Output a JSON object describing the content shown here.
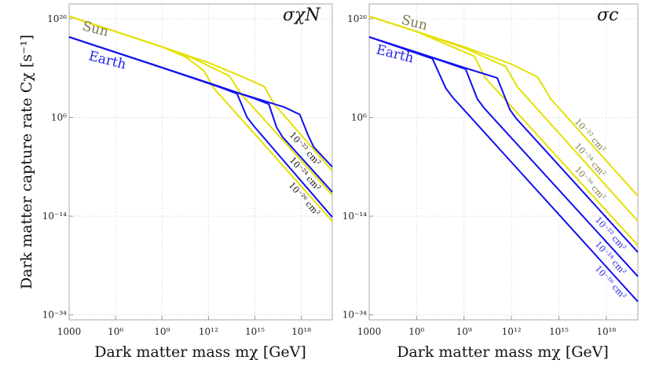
{
  "chart_data": [
    {
      "type": "line",
      "title": "σχN",
      "xlabel": "Dark matter mass mχ [GeV]",
      "ylabel": "Dark matter capture rate Cχ [s⁻¹]",
      "xscale": "log",
      "yscale": "log",
      "xlim": [
        1000.0,
        1e+20
      ],
      "ylim": [
        1e-35,
        1e+29
      ],
      "xticks": [
        "1000",
        "10⁶",
        "10⁹",
        "10¹²",
        "10¹⁵",
        "10¹⁸"
      ],
      "xtick_values": [
        1000.0,
        1000000.0,
        1000000000.0,
        1000000000000.0,
        1000000000000000.0,
        1e+18
      ],
      "yticks": [
        "10²⁶",
        "10⁶",
        "10⁻¹⁴",
        "10⁻³⁴"
      ],
      "ytick_values": [
        1e+26,
        1000000.0,
        1e-14,
        1e-34
      ],
      "grid": true,
      "annotations": {
        "sun": "Sun",
        "earth": "Earth",
        "s22": "10⁻²² cm²",
        "s24": "10⁻²⁴ cm²",
        "s26": "10⁻²⁶ cm²"
      },
      "series": [
        {
          "body": "Sun",
          "cross_section": "10⁻²² cm²",
          "color": "#e5e000",
          "points": [
            [
              1000.0,
              3.16e+26
            ],
            [
              1000000.0,
              2.51e+23
            ],
            [
              1000000000.0,
              2e+20
            ],
            [
              1000000000000.0,
              1.26e+17
            ],
            [
              100000000000000.0,
              316000000000000.0
            ],
            [
              3980000000000000.0,
              2000000000000.0
            ],
            [
              1.78e+16,
              501000000.0
            ],
            [
              1e+20,
              1.58e-05
            ]
          ]
        },
        {
          "body": "Sun",
          "cross_section": "10⁻²⁴ cm²",
          "color": "#e5e000",
          "points": [
            [
              1000.0,
              3.16e+26
            ],
            [
              1000000.0,
              2.51e+23
            ],
            [
              1000000000.0,
              2e+20
            ],
            [
              100000000000.0,
              1e+18
            ],
            [
              22400000000000.0,
              251000000000000.0
            ],
            [
              126000000000000.0,
              63100000000.0
            ],
            [
              1e+20,
              2e-10
            ]
          ]
        },
        {
          "body": "Sun",
          "cross_section": "10⁻²⁶ cm²",
          "color": "#e5e000",
          "points": [
            [
              1000.0,
              3.16e+26
            ],
            [
              1000000.0,
              2.51e+23
            ],
            [
              1000000000.0,
              2e+20
            ],
            [
              31600000000.0,
              2e+18
            ],
            [
              501000000000.0,
              3160000000000000.0
            ],
            [
              2240000000000.0,
              794000000000.0
            ],
            [
              1e+20,
              1e-15
            ]
          ]
        },
        {
          "body": "Earth",
          "cross_section": "10⁻²² cm²",
          "color": "#1010f0",
          "points": [
            [
              1000.0,
              2e+22
            ],
            [
              1000000000.0,
              1.26e+16
            ],
            [
              1000000000000.0,
              10000000000000.0
            ],
            [
              100000000000000.0,
              79400000000.0
            ],
            [
              7.94e+16,
              126000000.0
            ],
            [
              7.94e+17,
              3980000.0
            ],
            [
              2.82e+18,
              200.0
            ],
            [
              6.31e+18,
              1
            ],
            [
              1e+20,
              0.0001
            ]
          ]
        },
        {
          "body": "Earth",
          "cross_section": "10⁻²⁴ cm²",
          "color": "#1010f0",
          "points": [
            [
              1000.0,
              2e+22
            ],
            [
              1000000000.0,
              1.26e+16
            ],
            [
              1000000000000.0,
              10000000000000.0
            ],
            [
              1000000000000000.0,
              6310000000.0
            ],
            [
              7940000000000000.0,
              501000000.0
            ],
            [
              2.51e+16,
              10000.0
            ],
            [
              6.31e+16,
              100.0
            ],
            [
              1e+20,
              7.94e-10
            ]
          ]
        },
        {
          "body": "Earth",
          "cross_section": "10⁻²⁶ cm²",
          "color": "#1010f0",
          "points": [
            [
              1000.0,
              2e+22
            ],
            [
              1000000000.0,
              1.26e+16
            ],
            [
              7080000000000.0,
              1000000000000.0
            ],
            [
              70800000000000.0,
              63100000000.0
            ],
            [
              316000000000000.0,
              1000000.0
            ],
            [
              1000000000000000.0,
              10000.0
            ],
            [
              1e+20,
              6.31e-15
            ]
          ]
        }
      ]
    },
    {
      "type": "line",
      "title": "σc",
      "xlabel": "Dark matter mass mχ [GeV]",
      "xscale": "log",
      "yscale": "log",
      "xlim": [
        1000.0,
        1e+20
      ],
      "ylim": [
        1e-35,
        1e+29
      ],
      "xticks": [
        "1000",
        "10⁶",
        "10⁹",
        "10¹²",
        "10¹⁵",
        "10¹⁸"
      ],
      "xtick_values": [
        1000.0,
        1000000.0,
        1000000000.0,
        1000000000000.0,
        1000000000000000.0,
        1e+18
      ],
      "yticks": [
        "10²⁶",
        "10⁶",
        "10⁻¹⁴",
        "10⁻³⁴"
      ],
      "ytick_values": [
        1e+26,
        1000000.0,
        1e-14,
        1e-34
      ],
      "grid": true,
      "annotations": {
        "sun": "Sun",
        "earth": "Earth",
        "sun22": "10⁻²² cm²",
        "sun24": "10⁻²⁴ cm²",
        "sun26": "10⁻²⁶ cm²",
        "earth22": "10⁻²² cm²",
        "earth24": "10⁻²⁴ cm²",
        "earth26": "10⁻²⁶ cm²"
      },
      "series": [
        {
          "body": "Sun",
          "cross_section": "10⁻²² cm²",
          "color": "#e5e000",
          "points": [
            [
              1000.0,
              3.16e+26
            ],
            [
              1000000.0,
              2.51e+23
            ],
            [
              1000000000.0,
              2e+20
            ],
            [
              1000000000000.0,
              6.31e+16
            ],
            [
              44700000000000.0,
              158000000000000.0
            ],
            [
              316000000000000.0,
              5010000000.0
            ],
            [
              1e+20,
              1.26e-10
            ]
          ]
        },
        {
          "body": "Sun",
          "cross_section": "10⁻²⁴ cm²",
          "color": "#e5e000",
          "points": [
            [
              1000.0,
              3.16e+26
            ],
            [
              1000000.0,
              2.51e+23
            ],
            [
              1000000000.0,
              1.26e+20
            ],
            [
              447000000000.0,
              2e+16
            ],
            [
              2240000000000.0,
              2000000000000.0
            ],
            [
              1e+20,
              1e-15
            ]
          ]
        },
        {
          "body": "Sun",
          "cross_section": "10⁻²⁶ cm²",
          "color": "#e5e000",
          "points": [
            [
              1000.0,
              3.16e+26
            ],
            [
              1000000.0,
              2.51e+23
            ],
            [
              4470000000.0,
              2.51e+18
            ],
            [
              22400000000.0,
              100000000000000.0
            ],
            [
              1e+20,
              1.26e-20
            ]
          ]
        },
        {
          "body": "Earth",
          "cross_section": "10⁻²² cm²",
          "color": "#1010f0",
          "points": [
            [
              1000.0,
              2e+22
            ],
            [
              1000000.0,
              1.58e+19
            ],
            [
              1000000000.0,
              1.26e+16
            ],
            [
              126000000000.0,
              100000000000000.0
            ],
            [
              794000000000.0,
              39800000.0
            ],
            [
              2000000000000.0,
              631000.0
            ],
            [
              1e+20,
              5.01e-22
            ]
          ]
        },
        {
          "body": "Earth",
          "cross_section": "10⁻²⁴ cm²",
          "color": "#1010f0",
          "points": [
            [
              1000.0,
              2e+22
            ],
            [
              1000000.0,
              1.58e+19
            ],
            [
              1260000000.0,
              6310000000000000.0
            ],
            [
              7080000000.0,
              5010000000.0
            ],
            [
              20000000000.0,
              63100000.0
            ],
            [
              1e+20,
              6.31e-27
            ]
          ]
        },
        {
          "body": "Earth",
          "cross_section": "10⁻²⁶ cm²",
          "color": "#1010f0",
          "points": [
            [
              1000.0,
              2e+22
            ],
            [
              10000000.0,
              7.94e+17
            ],
            [
              70800000.0,
              794000000000.0
            ],
            [
              200000000.0,
              10000000000.0
            ],
            [
              1e+20,
              5.01e-32
            ]
          ]
        }
      ]
    }
  ],
  "colors": {
    "sun": "#e5e000",
    "earth": "#1010f0",
    "sun_label": "#7d7a4e",
    "earth_label": "#2626e6"
  }
}
